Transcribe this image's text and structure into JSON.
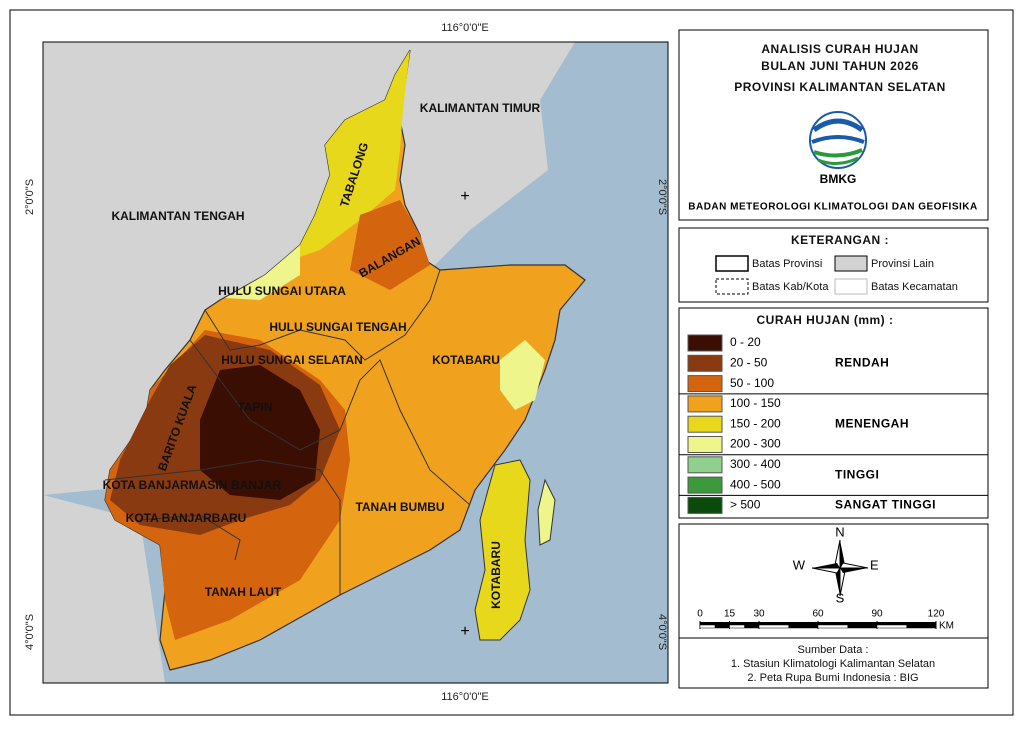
{
  "map": {
    "coords": {
      "top": "116°0'0\"E",
      "bottom": "116°0'0\"E",
      "left_upper": "2°0'0\"S",
      "right_upper": "2°0'0\"S",
      "left_lower": "4°0'0\"S",
      "right_lower": "4°0'0\"S"
    },
    "regions": {
      "kaltim": "KALIMANTAN TIMUR",
      "kalteng": "KALIMANTAN TENGAH",
      "tabalong": "TABALONG",
      "balangan": "BALANGAN",
      "hsu": "HULU SUNGAI UTARA",
      "hst": "HULU SUNGAI TENGAH",
      "hss": "HULU SUNGAI SELATAN",
      "kotabaru": "KOTABARU",
      "kotabaru_island": "KOTABARU",
      "tapin": "TAPIN",
      "barito_kuala": "BARITO KUALA",
      "banjarmasin": "KOTA BANJARMASIN",
      "banjar": "BANJAR",
      "banjarbaru": "KOTA BANJARBARU",
      "tanah_laut": "TANAH LAUT",
      "tanah_bumbu": "TANAH BUMBU"
    }
  },
  "header": {
    "title": [
      "ANALISIS CURAH HUJAN",
      "BULAN JUNI TAHUN 2026",
      "PROVINSI KALIMANTAN SELATAN"
    ],
    "logo": "BMKG",
    "agency": "BADAN METEOROLOGI KLIMATOLOGI DAN GEOFISIKA"
  },
  "legend": {
    "title": "KETERANGAN :",
    "items": [
      "Batas Provinsi",
      "Provinsi Lain",
      "Batas Kab/Kota",
      "Batas Kecamatan"
    ]
  },
  "rainfall": {
    "title": "CURAH HUJAN (mm) :",
    "groups": [
      {
        "label": "RENDAH",
        "classes": [
          {
            "label": "0 - 20",
            "color": "#3a0e02"
          },
          {
            "label": "20 - 50",
            "color": "#8a3a10"
          },
          {
            "label": "50 - 100",
            "color": "#d4640e"
          }
        ]
      },
      {
        "label": "MENENGAH",
        "classes": [
          {
            "label": "100 - 150",
            "color": "#f0a21e"
          },
          {
            "label": "150  - 200",
            "color": "#e8d81c"
          },
          {
            "label": "200 - 300",
            "color": "#eef58a"
          }
        ]
      },
      {
        "label": "TINGGI",
        "classes": [
          {
            "label": "300 - 400",
            "color": "#90d08f"
          },
          {
            "label": "400 - 500",
            "color": "#3c9a3c"
          }
        ]
      },
      {
        "label": "SANGAT TINGGI",
        "classes": [
          {
            "label": "> 500",
            "color": "#0a4a0a"
          }
        ]
      }
    ]
  },
  "compass": {
    "n": "N",
    "e": "E",
    "s": "S",
    "w": "W"
  },
  "scale": {
    "ticks": [
      0,
      15,
      30,
      60,
      90,
      120
    ],
    "unit": "KM"
  },
  "source": {
    "title": "Sumber Data :",
    "lines": [
      "1. Stasiun Klimatologi Kalimantan Selatan",
      "2. Peta Rupa Bumi Indonesia : BIG"
    ]
  }
}
